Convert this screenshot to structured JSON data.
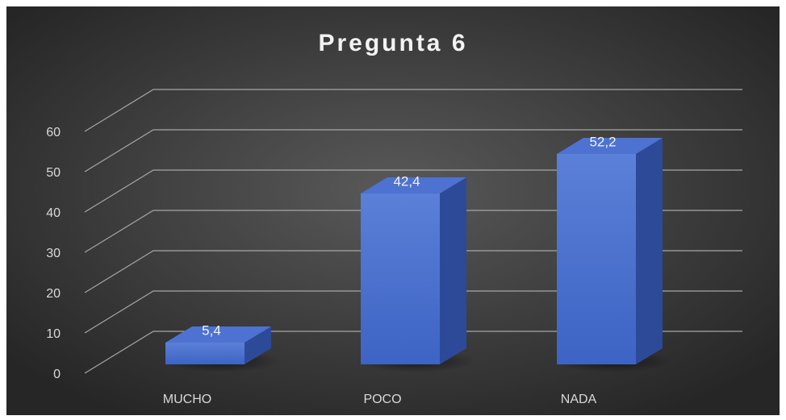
{
  "chart_data": {
    "type": "bar3d",
    "title": "Pregunta 6",
    "categories": [
      "MUCHO",
      "POCO",
      "NADA"
    ],
    "values": [
      5.4,
      42.4,
      52.2
    ],
    "value_labels": [
      "5,4",
      "42,4",
      "52,2"
    ],
    "color": "#4472c4",
    "ylim": [
      0,
      60
    ],
    "yticks": [
      0,
      10,
      20,
      30,
      40,
      50,
      60
    ],
    "grid": true
  }
}
